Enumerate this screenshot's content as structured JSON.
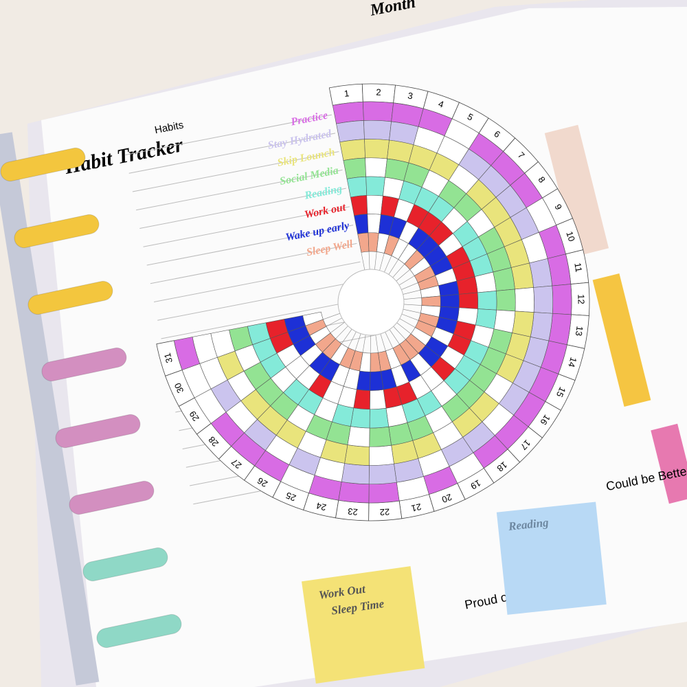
{
  "page": {
    "month_label": "Month",
    "title": "Habit Tracker",
    "habits_header": "Habits",
    "days": [
      1,
      2,
      3,
      4,
      5,
      6,
      7,
      8,
      9,
      10,
      11,
      12,
      13,
      14,
      15,
      16,
      17,
      18,
      19,
      20,
      21,
      22,
      23,
      24,
      25,
      26,
      27,
      28,
      29,
      30,
      31
    ],
    "habits": [
      {
        "name": "Practice",
        "color": "#d86ce4",
        "done": [
          1,
          1,
          1,
          1,
          0,
          1,
          1,
          1,
          0,
          1,
          1,
          1,
          1,
          1,
          1,
          1,
          1,
          1,
          0,
          1,
          0,
          1,
          1,
          1,
          0,
          1,
          1,
          1,
          0,
          0,
          1
        ]
      },
      {
        "name": "Stay Hydrated",
        "color": "#cbc4ee",
        "done": [
          1,
          1,
          1,
          0,
          0,
          1,
          1,
          1,
          1,
          0,
          1,
          1,
          1,
          1,
          1,
          1,
          0,
          1,
          1,
          0,
          1,
          1,
          1,
          0,
          1,
          0,
          1,
          0,
          1,
          0,
          0
        ]
      },
      {
        "name": "Skip Lounch",
        "color": "#e9e47c",
        "done": [
          1,
          1,
          1,
          1,
          1,
          0,
          1,
          1,
          1,
          1,
          1,
          0,
          1,
          1,
          1,
          0,
          1,
          1,
          0,
          1,
          1,
          0,
          1,
          1,
          0,
          1,
          1,
          1,
          0,
          1,
          0
        ]
      },
      {
        "name": "Social Media",
        "color": "#93e393",
        "done": [
          1,
          0,
          1,
          1,
          0,
          1,
          1,
          0,
          1,
          1,
          1,
          1,
          0,
          1,
          1,
          1,
          1,
          1,
          0,
          1,
          1,
          1,
          0,
          1,
          1,
          0,
          1,
          1,
          1,
          0,
          1
        ]
      },
      {
        "name": "Reading",
        "color": "#84ead9",
        "done": [
          1,
          1,
          0,
          1,
          1,
          1,
          0,
          1,
          1,
          1,
          0,
          1,
          1,
          0,
          1,
          1,
          1,
          0,
          1,
          1,
          0,
          1,
          1,
          1,
          0,
          1,
          1,
          0,
          1,
          1,
          1
        ]
      },
      {
        "name": "Work out",
        "color": "#e7222b",
        "done": [
          1,
          0,
          1,
          0,
          1,
          1,
          1,
          0,
          1,
          1,
          1,
          1,
          0,
          1,
          1,
          0,
          1,
          0,
          0,
          1,
          1,
          0,
          1,
          0,
          0,
          1,
          0,
          0,
          0,
          1,
          1
        ]
      },
      {
        "name": "Wake up early",
        "color": "#1d30d6",
        "done": [
          1,
          0,
          1,
          1,
          0,
          1,
          1,
          1,
          1,
          0,
          1,
          1,
          1,
          1,
          0,
          1,
          1,
          0,
          1,
          0,
          1,
          1,
          1,
          0,
          0,
          1,
          1,
          0,
          1,
          1,
          1
        ]
      },
      {
        "name": "Sleep Well",
        "color": "#f2a78c",
        "done": [
          1,
          1,
          0,
          1,
          0,
          0,
          1,
          0,
          1,
          1,
          0,
          1,
          0,
          1,
          1,
          0,
          1,
          1,
          1,
          0,
          1,
          1,
          0,
          1,
          1,
          0,
          1,
          1,
          0,
          1,
          0
        ]
      }
    ],
    "could_be_better": {
      "label": "Could be Better",
      "note": "Reading"
    },
    "proud_of": {
      "label": "Proud of",
      "notes": [
        "Work Out",
        "Sleep Time"
      ]
    }
  }
}
